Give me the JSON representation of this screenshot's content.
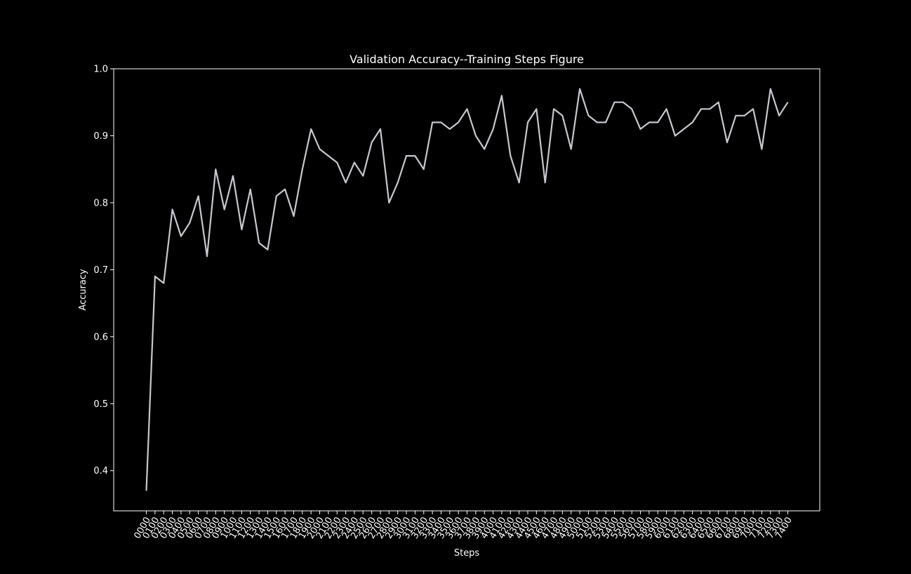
{
  "chart_data": {
    "type": "line",
    "title": "Validation Accuracy--Training Steps Figure",
    "xlabel": "Steps",
    "ylabel": "Accuracy",
    "ylim": [
      0.34,
      1.0
    ],
    "yticks": [
      0.4,
      0.5,
      0.6,
      0.7,
      0.8,
      0.9,
      1.0
    ],
    "grid": false,
    "categories": [
      "0000",
      "0100",
      "0200",
      "0300",
      "0400",
      "0500",
      "0600",
      "0700",
      "0800",
      "0900",
      "1000",
      "1100",
      "1200",
      "1300",
      "1400",
      "1500",
      "1600",
      "1700",
      "1800",
      "1900",
      "2000",
      "2100",
      "2200",
      "2300",
      "2400",
      "2500",
      "2600",
      "2700",
      "2800",
      "2900",
      "3000",
      "3100",
      "3200",
      "3300",
      "3400",
      "3500",
      "3600",
      "3700",
      "3800",
      "3900",
      "4000",
      "4100",
      "4200",
      "4300",
      "4400",
      "4500",
      "4600",
      "4700",
      "4800",
      "4900",
      "5000",
      "5100",
      "5200",
      "5300",
      "5400",
      "5500",
      "5600",
      "5700",
      "5800",
      "5900",
      "6000",
      "6100",
      "6200",
      "6300",
      "6400",
      "6500",
      "6600",
      "6700",
      "6800",
      "6900",
      "7000",
      "7100",
      "7200",
      "7300",
      "7400"
    ],
    "series": [
      {
        "values": [
          0.37,
          0.69,
          0.68,
          0.79,
          0.75,
          0.77,
          0.81,
          0.72,
          0.85,
          0.79,
          0.84,
          0.76,
          0.82,
          0.74,
          0.73,
          0.81,
          0.82,
          0.78,
          0.85,
          0.91,
          0.88,
          0.87,
          0.86,
          0.83,
          0.86,
          0.84,
          0.89,
          0.91,
          0.8,
          0.83,
          0.87,
          0.87,
          0.85,
          0.92,
          0.92,
          0.91,
          0.92,
          0.94,
          0.9,
          0.88,
          0.91,
          0.96,
          0.87,
          0.83,
          0.92,
          0.94,
          0.83,
          0.94,
          0.93,
          0.88,
          0.97,
          0.93,
          0.92,
          0.92,
          0.95,
          0.95,
          0.94,
          0.91,
          0.92,
          0.92,
          0.94,
          0.9,
          0.91,
          0.92,
          0.94,
          0.94,
          0.95,
          0.89,
          0.93,
          0.93,
          0.94,
          0.88,
          0.97,
          0.93,
          0.95
        ]
      }
    ],
    "colors": {
      "background": "#000000",
      "axes": "#ffffff",
      "line": "#c8c8d0",
      "text": "#ffffff"
    }
  }
}
